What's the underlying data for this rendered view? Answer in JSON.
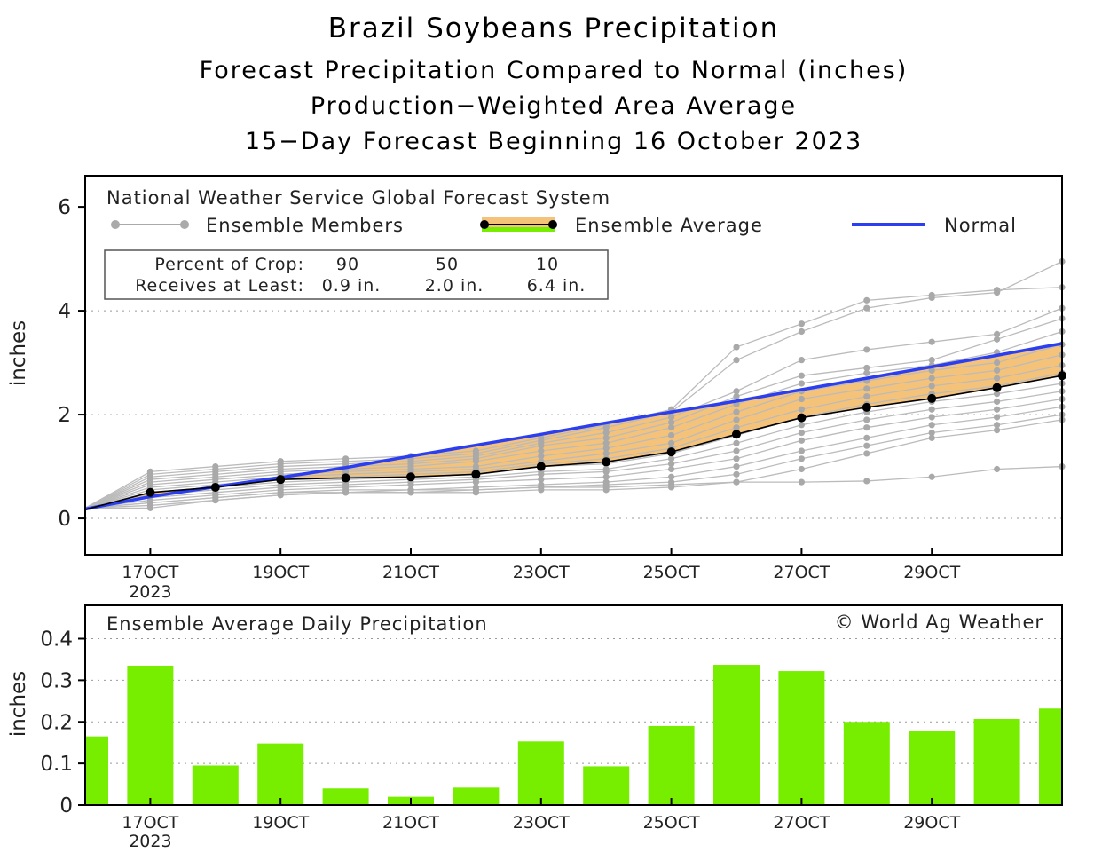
{
  "titles": {
    "line1": "Brazil Soybeans Precipitation",
    "line2": "Forecast Precipitation Compared to Normal (inches)",
    "line3": "Production−Weighted Area Average",
    "line4": "15−Day Forecast Beginning 16 October 2023"
  },
  "legend": {
    "source": "National Weather Service Global Forecast System",
    "members": "Ensemble Members",
    "average": "Ensemble Average",
    "normal": "Normal"
  },
  "crop_table": {
    "label1": "Percent of Crop:",
    "label2": "Receives at Least:",
    "p90": "90",
    "p50": "50",
    "p10": "10",
    "v90": "0.9 in.",
    "v50": "2.0 in.",
    "v10": "6.4 in."
  },
  "bottom_panel": {
    "title": "Ensemble Average Daily Precipitation",
    "credit": "© World Ag Weather"
  },
  "colors": {
    "normal": "#2b3ff0",
    "fill": "#f5c27a",
    "members": "#bbbbbb",
    "average": "#000000",
    "bars": "#77ee00"
  },
  "chart_data": [
    {
      "type": "line",
      "title": "Forecast Precipitation Compared to Normal (inches)",
      "ylabel": "inches",
      "xlabel": "",
      "ylim": [
        -0.7,
        6.6
      ],
      "xlim": [
        0,
        15
      ],
      "yticks": [
        0,
        2,
        4,
        6
      ],
      "x_ticks": [
        {
          "x": 1,
          "label": "17OCT",
          "sub": "2023"
        },
        {
          "x": 3,
          "label": "19OCT",
          "sub": ""
        },
        {
          "x": 5,
          "label": "21OCT",
          "sub": ""
        },
        {
          "x": 7,
          "label": "23OCT",
          "sub": ""
        },
        {
          "x": 9,
          "label": "25OCT",
          "sub": ""
        },
        {
          "x": 11,
          "label": "27OCT",
          "sub": ""
        },
        {
          "x": 13,
          "label": "29OCT",
          "sub": ""
        }
      ],
      "x": [
        0,
        1,
        2,
        3,
        4,
        5,
        6,
        7,
        8,
        9,
        10,
        11,
        12,
        13,
        14,
        15
      ],
      "series": [
        {
          "name": "Normal",
          "values": [
            0.18,
            0.42,
            0.61,
            0.79,
            0.98,
            1.2,
            1.41,
            1.62,
            1.84,
            2.05,
            2.26,
            2.48,
            2.7,
            2.92,
            3.14,
            3.37
          ]
        },
        {
          "name": "Ensemble Average",
          "values": [
            0.17,
            0.5,
            0.6,
            0.75,
            0.78,
            0.8,
            0.85,
            1.0,
            1.09,
            1.28,
            1.62,
            1.94,
            2.14,
            2.31,
            2.52,
            2.75
          ]
        }
      ],
      "members": [
        [
          0.2,
          0.9,
          1.0,
          1.1,
          1.15,
          1.2,
          1.3,
          1.55,
          1.8,
          2.1,
          3.3,
          3.75,
          4.2,
          4.3,
          4.4,
          4.45
        ],
        [
          0.2,
          0.85,
          0.95,
          1.05,
          1.1,
          1.15,
          1.25,
          1.5,
          1.75,
          2.05,
          3.05,
          3.6,
          4.05,
          4.25,
          4.35,
          4.95
        ],
        [
          0.2,
          0.8,
          0.9,
          1.0,
          1.05,
          1.1,
          1.2,
          1.45,
          1.65,
          1.95,
          2.45,
          3.05,
          3.25,
          3.4,
          3.55,
          4.05
        ],
        [
          0.2,
          0.75,
          0.85,
          0.95,
          1.0,
          1.05,
          1.15,
          1.4,
          1.55,
          1.85,
          2.35,
          2.75,
          2.9,
          3.05,
          3.45,
          3.85
        ],
        [
          0.2,
          0.7,
          0.8,
          0.9,
          0.95,
          1.0,
          1.1,
          1.3,
          1.45,
          1.75,
          2.2,
          2.6,
          2.8,
          2.95,
          3.2,
          3.6
        ],
        [
          0.2,
          0.65,
          0.75,
          0.85,
          0.9,
          0.95,
          1.0,
          1.2,
          1.35,
          1.6,
          2.05,
          2.45,
          2.65,
          2.85,
          3.0,
          3.35
        ],
        [
          0.2,
          0.6,
          0.7,
          0.8,
          0.85,
          0.9,
          0.95,
          1.1,
          1.25,
          1.45,
          1.9,
          2.3,
          2.5,
          2.7,
          2.85,
          3.15
        ],
        [
          0.2,
          0.55,
          0.65,
          0.75,
          0.8,
          0.85,
          0.9,
          1.05,
          1.15,
          1.35,
          1.75,
          2.1,
          2.35,
          2.55,
          2.7,
          2.95
        ],
        [
          0.2,
          0.5,
          0.6,
          0.7,
          0.75,
          0.8,
          0.85,
          1.0,
          1.05,
          1.25,
          1.6,
          1.95,
          2.2,
          2.4,
          2.55,
          2.8
        ],
        [
          0.2,
          0.45,
          0.55,
          0.65,
          0.7,
          0.75,
          0.8,
          0.9,
          0.95,
          1.15,
          1.45,
          1.8,
          2.05,
          2.25,
          2.4,
          2.6
        ],
        [
          0.2,
          0.4,
          0.5,
          0.6,
          0.65,
          0.7,
          0.75,
          0.85,
          0.9,
          1.05,
          1.3,
          1.65,
          1.9,
          2.1,
          2.25,
          2.45
        ],
        [
          0.2,
          0.35,
          0.45,
          0.55,
          0.6,
          0.65,
          0.7,
          0.75,
          0.8,
          0.95,
          1.15,
          1.5,
          1.75,
          1.95,
          2.1,
          2.3
        ],
        [
          0.2,
          0.3,
          0.4,
          0.5,
          0.55,
          0.55,
          0.6,
          0.65,
          0.7,
          0.8,
          1.0,
          1.3,
          1.55,
          1.8,
          1.95,
          2.15
        ],
        [
          0.2,
          0.25,
          0.35,
          0.45,
          0.5,
          0.5,
          0.55,
          0.6,
          0.65,
          0.7,
          0.85,
          1.15,
          1.4,
          1.65,
          1.8,
          2.0
        ],
        [
          0.2,
          0.2,
          0.35,
          0.45,
          0.5,
          0.5,
          0.5,
          0.55,
          0.55,
          0.6,
          0.7,
          0.95,
          1.25,
          1.55,
          1.7,
          1.9
        ],
        [
          0.2,
          0.3,
          0.4,
          0.5,
          0.5,
          0.55,
          0.55,
          0.6,
          0.6,
          0.65,
          0.7,
          0.7,
          0.72,
          0.8,
          0.95,
          1.0
        ]
      ]
    },
    {
      "type": "bar",
      "title": "Ensemble Average Daily Precipitation",
      "ylabel": "inches",
      "xlabel": "",
      "ylim": [
        0,
        0.48
      ],
      "yticks": [
        0,
        0.1,
        0.2,
        0.3,
        0.4
      ],
      "ytick_labels": [
        "0",
        "0.1",
        "0.2",
        "0.3",
        "0.4"
      ],
      "x": [
        0,
        1,
        2,
        3,
        4,
        5,
        6,
        7,
        8,
        9,
        10,
        11,
        12,
        13,
        14,
        15
      ],
      "values": [
        0.165,
        0.335,
        0.095,
        0.148,
        0.04,
        0.02,
        0.042,
        0.153,
        0.093,
        0.19,
        0.337,
        0.322,
        0.2,
        0.178,
        0.207,
        0.232
      ],
      "x_ticks": [
        {
          "x": 1,
          "label": "17OCT",
          "sub": "2023"
        },
        {
          "x": 3,
          "label": "19OCT",
          "sub": ""
        },
        {
          "x": 5,
          "label": "21OCT",
          "sub": ""
        },
        {
          "x": 7,
          "label": "23OCT",
          "sub": ""
        },
        {
          "x": 9,
          "label": "25OCT",
          "sub": ""
        },
        {
          "x": 11,
          "label": "27OCT",
          "sub": ""
        },
        {
          "x": 13,
          "label": "29OCT",
          "sub": ""
        }
      ]
    }
  ]
}
